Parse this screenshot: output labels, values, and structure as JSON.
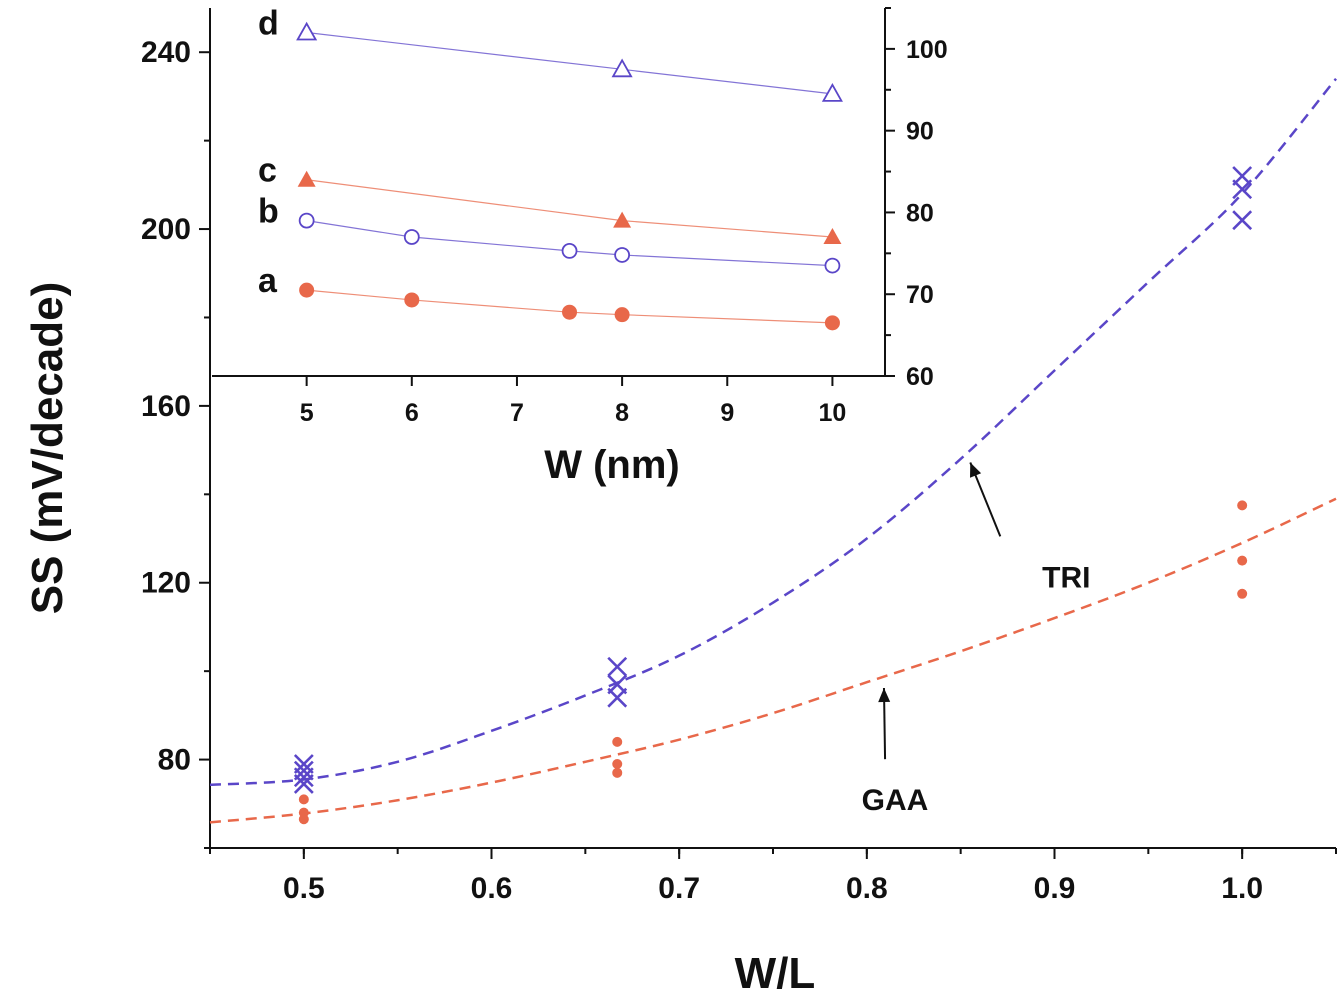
{
  "colors": {
    "tri": "#5a46c8",
    "gaa": "#e8684a",
    "axis": "#111111"
  },
  "chart_data": [
    {
      "id": "main",
      "type": "scatter",
      "xlabel": "W/L",
      "ylabel": "SS  (mV/decade)",
      "xlim": [
        0.45,
        1.05
      ],
      "ylim": [
        60,
        250
      ],
      "xticks": [
        0.5,
        0.6,
        0.7,
        0.8,
        0.9,
        1.0
      ],
      "xtick_labels": [
        "0.5",
        "0.6",
        "0.7",
        "0.8",
        "0.9",
        "1.0"
      ],
      "yticks": [
        80,
        120,
        160,
        200,
        240
      ],
      "ytick_labels": [
        "80",
        "120",
        "160",
        "200",
        "240"
      ],
      "series": [
        {
          "name": "TRI",
          "marker": "x",
          "color": "#5a46c8",
          "points": [
            [
              0.5,
              79
            ],
            [
              0.5,
              77.5
            ],
            [
              0.5,
              76
            ],
            [
              0.5,
              74.5
            ],
            [
              0.667,
              101
            ],
            [
              0.667,
              97
            ],
            [
              0.667,
              94
            ],
            [
              1.0,
              212
            ],
            [
              1.0,
              209
            ],
            [
              1.0,
              202
            ]
          ],
          "fit": [
            [
              0.45,
              74.3
            ],
            [
              0.5,
              75.5
            ],
            [
              0.55,
              79.5
            ],
            [
              0.6,
              86.5
            ],
            [
              0.65,
              94.5
            ],
            [
              0.7,
              103.5
            ],
            [
              0.75,
              115.5
            ],
            [
              0.8,
              130
            ],
            [
              0.85,
              148
            ],
            [
              0.9,
              168
            ],
            [
              0.95,
              188
            ],
            [
              1.0,
              208
            ],
            [
              1.05,
              234
            ]
          ]
        },
        {
          "name": "GAA",
          "marker": "dot",
          "color": "#e8684a",
          "points": [
            [
              0.5,
              71
            ],
            [
              0.5,
              68
            ],
            [
              0.5,
              66.5
            ],
            [
              0.667,
              84
            ],
            [
              0.667,
              79
            ],
            [
              0.667,
              77
            ],
            [
              1.0,
              137.5
            ],
            [
              1.0,
              125
            ],
            [
              1.0,
              117.5
            ]
          ],
          "fit": [
            [
              0.45,
              65.8
            ],
            [
              0.5,
              67.8
            ],
            [
              0.55,
              70.8
            ],
            [
              0.6,
              74.8
            ],
            [
              0.65,
              79.5
            ],
            [
              0.7,
              84.5
            ],
            [
              0.75,
              90.5
            ],
            [
              0.8,
              97.5
            ],
            [
              0.85,
              104.5
            ],
            [
              0.9,
              112
            ],
            [
              0.95,
              120
            ],
            [
              1.0,
              129
            ],
            [
              1.05,
              139
            ]
          ]
        }
      ],
      "annotations": [
        {
          "text": "TRI",
          "target": [
            0.853,
            149
          ]
        },
        {
          "text": "GAA",
          "target": [
            0.807,
            98
          ]
        }
      ]
    },
    {
      "id": "inset",
      "type": "line",
      "xlabel": "W  (nm)",
      "ylabel": "",
      "xlim": [
        4.1,
        10.5
      ],
      "ylim": [
        60,
        105
      ],
      "xticks": [
        5,
        6,
        7,
        8,
        9,
        10
      ],
      "xtick_labels": [
        "5",
        "6",
        "7",
        "8",
        "9",
        "10"
      ],
      "yticks_right": [
        60,
        70,
        80,
        90,
        100
      ],
      "ytick_labels_right": [
        "60",
        "70",
        "80",
        "90",
        "100"
      ],
      "series": [
        {
          "name": "a",
          "marker": "filled-circle",
          "color": "#e8684a",
          "points": [
            [
              5,
              70.5
            ],
            [
              6,
              69.3
            ],
            [
              7.5,
              67.8
            ],
            [
              8,
              67.5
            ],
            [
              10,
              66.5
            ]
          ]
        },
        {
          "name": "b",
          "marker": "open-circle",
          "color": "#5a46c8",
          "points": [
            [
              5,
              79
            ],
            [
              6,
              77
            ],
            [
              7.5,
              75.3
            ],
            [
              8,
              74.8
            ],
            [
              10,
              73.5
            ]
          ]
        },
        {
          "name": "c",
          "marker": "filled-triangle",
          "color": "#e8684a",
          "points": [
            [
              5,
              84
            ],
            [
              8,
              79
            ],
            [
              10,
              77
            ]
          ]
        },
        {
          "name": "d",
          "marker": "open-triangle",
          "color": "#5a46c8",
          "points": [
            [
              5,
              102
            ],
            [
              8,
              97.5
            ],
            [
              10,
              94.5
            ]
          ]
        }
      ]
    }
  ]
}
